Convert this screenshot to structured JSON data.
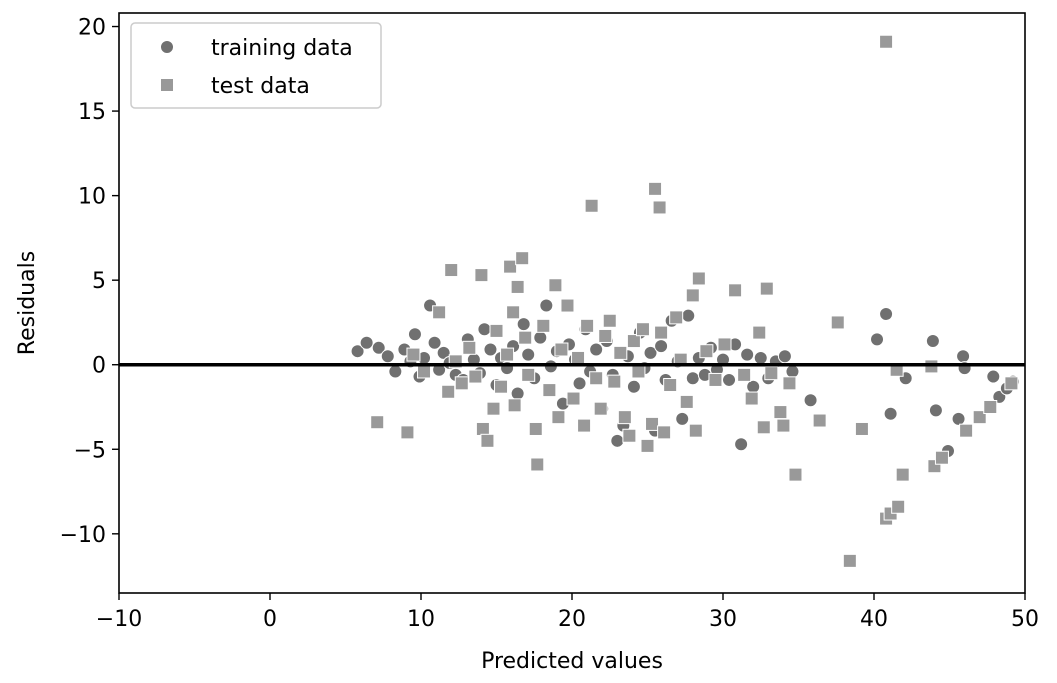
{
  "chart_data": {
    "type": "scatter",
    "title": "",
    "xlabel": "Predicted values",
    "ylabel": "Residuals",
    "xlim": [
      -10,
      50
    ],
    "ylim": [
      -13.5,
      20.8
    ],
    "xticks": [
      -10,
      0,
      10,
      20,
      30,
      40,
      50
    ],
    "yticks": [
      -10,
      -5,
      0,
      5,
      10,
      15,
      20
    ],
    "xtick_labels": [
      "−10",
      "0",
      "10",
      "20",
      "30",
      "40",
      "50"
    ],
    "ytick_labels": [
      "−10",
      "−5",
      "0",
      "5",
      "10",
      "15",
      "20"
    ],
    "hline": {
      "y": 0,
      "color": "#000000"
    },
    "grid": false,
    "legend_position": "top-left",
    "series": [
      {
        "name": "training data",
        "marker": "circle",
        "color": "#707070",
        "points": [
          [
            5.8,
            0.8
          ],
          [
            6.4,
            1.3
          ],
          [
            7.2,
            1.0
          ],
          [
            7.8,
            0.5
          ],
          [
            8.3,
            -0.4
          ],
          [
            8.9,
            0.9
          ],
          [
            9.3,
            0.2
          ],
          [
            9.6,
            1.8
          ],
          [
            9.9,
            -0.7
          ],
          [
            10.2,
            0.4
          ],
          [
            10.6,
            3.5
          ],
          [
            10.9,
            1.3
          ],
          [
            11.2,
            -0.3
          ],
          [
            11.5,
            0.7
          ],
          [
            11.9,
            0.1
          ],
          [
            12.3,
            -0.6
          ],
          [
            12.8,
            -0.9
          ],
          [
            13.1,
            1.5
          ],
          [
            13.5,
            0.3
          ],
          [
            13.9,
            -0.5
          ],
          [
            14.2,
            2.1
          ],
          [
            14.6,
            0.9
          ],
          [
            15.0,
            -1.2
          ],
          [
            15.3,
            0.4
          ],
          [
            15.7,
            -0.2
          ],
          [
            16.1,
            1.1
          ],
          [
            16.4,
            -1.7
          ],
          [
            16.8,
            2.4
          ],
          [
            17.1,
            0.6
          ],
          [
            17.5,
            -0.8
          ],
          [
            17.9,
            1.6
          ],
          [
            18.3,
            3.5
          ],
          [
            18.6,
            -0.1
          ],
          [
            19.0,
            0.8
          ],
          [
            19.4,
            -2.3
          ],
          [
            19.8,
            1.2
          ],
          [
            20.2,
            0.3
          ],
          [
            20.5,
            -1.1
          ],
          [
            20.9,
            2.1
          ],
          [
            21.2,
            -0.4
          ],
          [
            21.6,
            0.9
          ],
          [
            22.0,
            -2.6
          ],
          [
            22.3,
            1.4
          ],
          [
            22.7,
            -0.6
          ],
          [
            23.0,
            -4.5
          ],
          [
            23.4,
            -3.6
          ],
          [
            23.7,
            0.5
          ],
          [
            24.1,
            -1.3
          ],
          [
            24.5,
            1.9
          ],
          [
            24.8,
            -0.2
          ],
          [
            25.2,
            0.7
          ],
          [
            25.5,
            -3.9
          ],
          [
            25.9,
            1.1
          ],
          [
            26.2,
            -0.9
          ],
          [
            26.6,
            2.6
          ],
          [
            27.0,
            0.2
          ],
          [
            27.3,
            -3.2
          ],
          [
            27.7,
            2.9
          ],
          [
            28.0,
            -0.8
          ],
          [
            28.4,
            0.4
          ],
          [
            28.8,
            -0.6
          ],
          [
            29.2,
            1.0
          ],
          [
            29.6,
            -0.3
          ],
          [
            30.0,
            0.3
          ],
          [
            30.4,
            -0.9
          ],
          [
            30.8,
            1.2
          ],
          [
            31.2,
            -4.7
          ],
          [
            31.6,
            0.6
          ],
          [
            32.0,
            -1.3
          ],
          [
            32.5,
            0.4
          ],
          [
            33.0,
            -0.8
          ],
          [
            33.5,
            0.2
          ],
          [
            34.1,
            0.5
          ],
          [
            34.6,
            -0.4
          ],
          [
            35.8,
            -2.1
          ],
          [
            40.2,
            1.5
          ],
          [
            40.8,
            3.0
          ],
          [
            41.1,
            -2.9
          ],
          [
            42.1,
            -0.8
          ],
          [
            43.9,
            1.4
          ],
          [
            44.1,
            -2.7
          ],
          [
            44.9,
            -5.1
          ],
          [
            45.6,
            -3.2
          ],
          [
            45.9,
            0.5
          ],
          [
            46.0,
            -0.2
          ],
          [
            47.9,
            -0.7
          ],
          [
            48.3,
            -1.9
          ],
          [
            48.8,
            -1.4
          ],
          [
            49.2,
            -1.0
          ]
        ]
      },
      {
        "name": "test data",
        "marker": "square",
        "color": "#999999",
        "points": [
          [
            7.1,
            -3.4
          ],
          [
            9.1,
            -4.0
          ],
          [
            9.5,
            0.6
          ],
          [
            10.2,
            -0.4
          ],
          [
            11.2,
            3.1
          ],
          [
            11.8,
            -1.6
          ],
          [
            12.0,
            5.6
          ],
          [
            12.3,
            0.2
          ],
          [
            12.7,
            -1.1
          ],
          [
            13.2,
            1.0
          ],
          [
            13.6,
            -0.7
          ],
          [
            14.0,
            5.3
          ],
          [
            14.1,
            -3.8
          ],
          [
            14.4,
            -4.5
          ],
          [
            14.8,
            -2.6
          ],
          [
            15.0,
            2.0
          ],
          [
            15.3,
            -1.3
          ],
          [
            15.7,
            0.6
          ],
          [
            15.9,
            5.8
          ],
          [
            16.1,
            3.1
          ],
          [
            16.2,
            -2.4
          ],
          [
            16.4,
            4.6
          ],
          [
            16.7,
            6.3
          ],
          [
            16.9,
            1.6
          ],
          [
            17.1,
            -0.6
          ],
          [
            17.6,
            -3.8
          ],
          [
            17.7,
            -5.9
          ],
          [
            18.1,
            2.3
          ],
          [
            18.5,
            -1.5
          ],
          [
            18.9,
            4.7
          ],
          [
            19.1,
            -3.1
          ],
          [
            19.3,
            0.9
          ],
          [
            19.7,
            3.5
          ],
          [
            20.1,
            -2.0
          ],
          [
            20.4,
            0.4
          ],
          [
            20.8,
            -3.6
          ],
          [
            21.0,
            2.3
          ],
          [
            21.3,
            9.4
          ],
          [
            21.6,
            -0.8
          ],
          [
            21.9,
            -2.6
          ],
          [
            22.2,
            1.7
          ],
          [
            22.5,
            2.6
          ],
          [
            22.8,
            -1.0
          ],
          [
            23.2,
            0.7
          ],
          [
            23.5,
            -3.1
          ],
          [
            23.8,
            -4.2
          ],
          [
            24.1,
            1.4
          ],
          [
            24.4,
            -0.4
          ],
          [
            24.7,
            2.1
          ],
          [
            25.0,
            -4.8
          ],
          [
            25.3,
            -3.5
          ],
          [
            25.5,
            10.4
          ],
          [
            25.8,
            9.3
          ],
          [
            25.9,
            1.9
          ],
          [
            26.1,
            -4.0
          ],
          [
            26.5,
            -1.2
          ],
          [
            26.9,
            2.8
          ],
          [
            27.2,
            0.3
          ],
          [
            27.6,
            -2.2
          ],
          [
            28.0,
            4.1
          ],
          [
            28.2,
            -3.9
          ],
          [
            28.4,
            5.1
          ],
          [
            28.9,
            0.8
          ],
          [
            29.5,
            -0.9
          ],
          [
            30.1,
            1.2
          ],
          [
            30.8,
            4.4
          ],
          [
            31.4,
            -0.6
          ],
          [
            31.9,
            -2.0
          ],
          [
            32.4,
            1.9
          ],
          [
            32.7,
            -3.7
          ],
          [
            32.9,
            4.5
          ],
          [
            33.2,
            -0.5
          ],
          [
            33.8,
            -2.8
          ],
          [
            34.0,
            -3.6
          ],
          [
            34.4,
            -1.1
          ],
          [
            34.8,
            -6.5
          ],
          [
            36.4,
            -3.3
          ],
          [
            37.6,
            2.5
          ],
          [
            38.4,
            -11.6
          ],
          [
            39.2,
            -3.8
          ],
          [
            40.8,
            19.1
          ],
          [
            40.8,
            -9.1
          ],
          [
            41.1,
            -8.8
          ],
          [
            41.5,
            -0.3
          ],
          [
            41.6,
            -8.4
          ],
          [
            41.9,
            -6.5
          ],
          [
            43.8,
            -0.1
          ],
          [
            44.0,
            -6.0
          ],
          [
            44.5,
            -5.5
          ],
          [
            46.1,
            -3.9
          ],
          [
            47.0,
            -3.1
          ],
          [
            47.7,
            -2.5
          ],
          [
            49.1,
            -1.1
          ]
        ]
      }
    ]
  }
}
